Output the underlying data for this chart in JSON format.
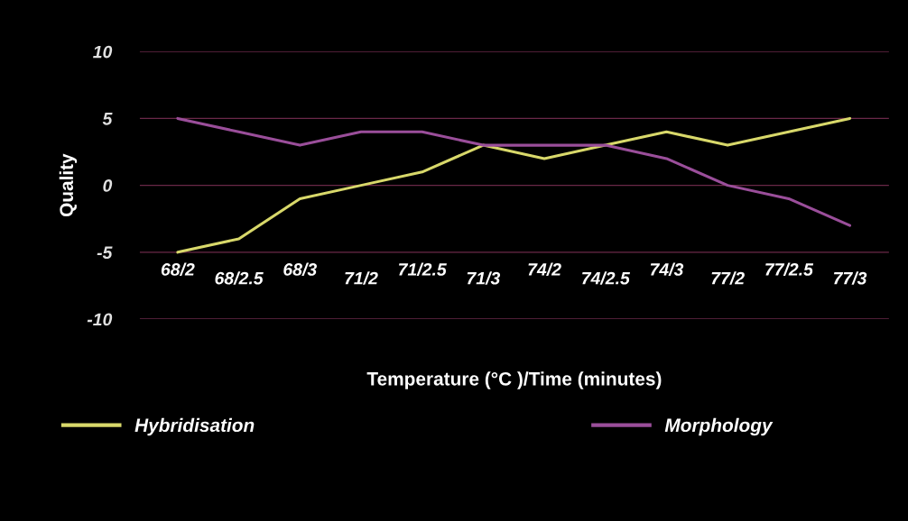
{
  "chart_data": {
    "type": "line",
    "xlabel": "Temperature (°C )/Time (minutes)",
    "ylabel": "Quality",
    "categories": [
      "68/2",
      "68/2.5",
      "68/3",
      "71/2",
      "71/2.5",
      "71/3",
      "74/2",
      "74/2.5",
      "74/3",
      "77/2",
      "77/2.5",
      "77/3"
    ],
    "series": [
      {
        "name": "Hybridisation",
        "color": "#d8d86a",
        "values": [
          -5,
          -4,
          -1,
          0,
          1,
          3,
          2,
          3,
          4,
          3,
          4,
          5
        ]
      },
      {
        "name": "Morphology",
        "color": "#9a4e9a",
        "values": [
          5,
          4,
          3,
          4,
          4,
          3,
          3,
          3,
          2,
          0,
          -1,
          -3
        ]
      }
    ],
    "ylim": [
      -10,
      10
    ],
    "yticks": [
      -10,
      -5,
      0,
      5,
      10
    ],
    "grid": "y",
    "legend": "bottom",
    "marker": "none",
    "line_style": "solid"
  }
}
